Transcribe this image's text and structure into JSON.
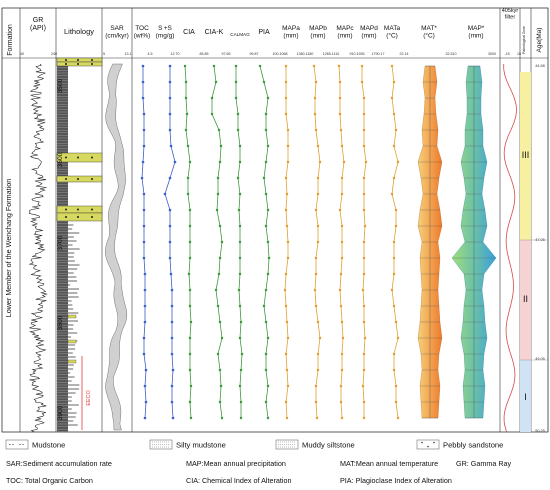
{
  "header": {
    "formation": "Formation",
    "gr": "GR\n(API)",
    "lithology": "Lithology",
    "sar": "SAR\n(cm/kyr)",
    "toc": "TOC\n(wt%)",
    "s": "S +S\n(mg/g)",
    "cia": "CIA",
    "ciak": "CIA-K",
    "calmag": "CALMAG",
    "pia": "PIA",
    "mapa": "MAPa\n(mm)",
    "mapb": "MAPb\n(mm)",
    "mapc": "MAPc\n(mm)",
    "mapd": "MAPd\n(mm)",
    "mata": "MATa\n(°C)",
    "mat": "MAT*\n(°C)",
    "map": "MAP*\n(mm)",
    "filter": "405kyr\nfilter",
    "zone": "Paleological\nZone",
    "age": "Age(Ma)"
  },
  "scales": {
    "gr": [
      "40",
      "240"
    ],
    "sar": [
      "5",
      "13.1"
    ],
    "toc": [
      "4.5"
    ],
    "s": [
      "12.70"
    ],
    "cia": [
      "85.85"
    ],
    "ciak": [
      "97.65"
    ],
    "calmag": [
      "99.87"
    ],
    "pia": [
      "100.1068"
    ],
    "mapa": [
      "1360.1180"
    ],
    "mapb": [
      "1265.1110"
    ],
    "mapc": [
      "910.1935"
    ],
    "mapd": [
      "1790.17"
    ],
    "mata": [
      "22.14"
    ],
    "mat": [
      "32.510"
    ],
    "map": [
      "3000",
      "-15"
    ],
    "filter": [
      "15"
    ]
  },
  "formation_name": "Lower Member of the Wenchang Formation",
  "depths": [
    "3500",
    "3600",
    "3700",
    "3800",
    "3900"
  ],
  "ages": [
    "44.58",
    "47.05",
    "49.05",
    "50.25"
  ],
  "zones": [
    "III",
    "II",
    "I"
  ],
  "eeco_label": "EECO",
  "legend": {
    "items": [
      "Mudstone",
      "Silty mudstone",
      "Muddy siltstone",
      "Pebbly sandstone"
    ],
    "abbreviations": [
      "SAR:Sediment accumulation rate",
      "MAP:Mean annual precipitation",
      "MAT:Mean annual temperature",
      "GR: Gamma Ray",
      "TOC: Total Organic Carbon",
      "CIA: Chemical Index of Alteration",
      "PIA: Plagioclase Index of Alteration"
    ]
  },
  "colors": {
    "toc": "#3a5fc8",
    "chem": "#3d9a3d",
    "map": "#e0a030",
    "mat": "#ec7a2c",
    "mapstar_left": "#9fe07a",
    "mapstar_right": "#3aa0d8",
    "filter": "#d44a4a",
    "zone3": "#f6f0a0",
    "zone2": "#f6d2d2",
    "zone1": "#cfe3f4",
    "pebbly": "#d6d860"
  }
}
